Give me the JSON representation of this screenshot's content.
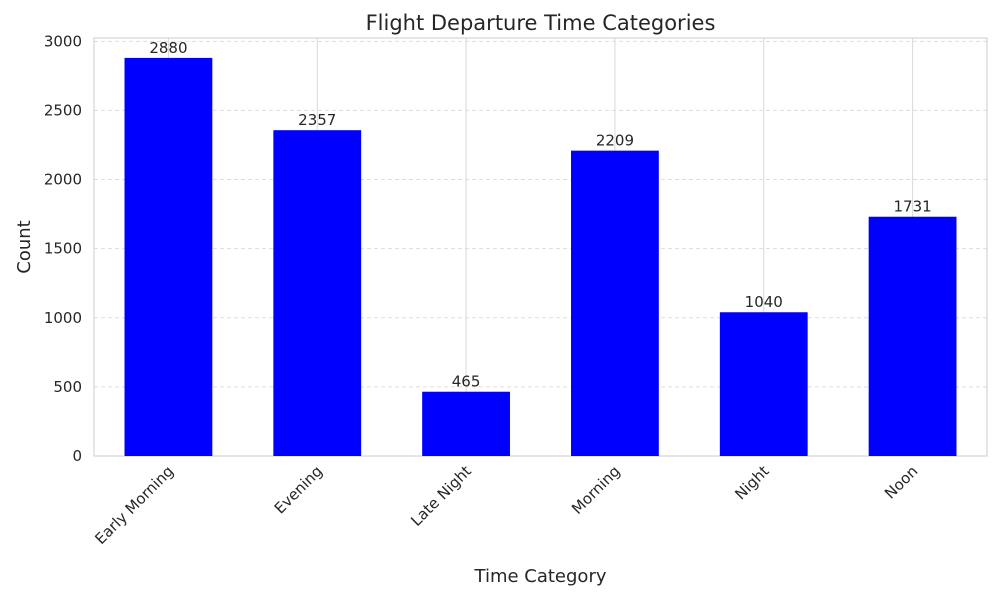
{
  "chart_data": {
    "type": "bar",
    "title": "Flight Departure Time Categories",
    "xlabel": "Time Category",
    "ylabel": "Count",
    "categories": [
      "Early Morning",
      "Evening",
      "Late Night",
      "Morning",
      "Night",
      "Noon"
    ],
    "values": [
      2880,
      2357,
      465,
      2209,
      1040,
      1731
    ],
    "ylim": [
      0,
      3024
    ],
    "yticks": [
      0,
      500,
      1000,
      1500,
      2000,
      2500,
      3000
    ],
    "data_labels": true,
    "bar_color": "#0000ff",
    "grid": {
      "y": "dashed",
      "x": "solid"
    },
    "legend": "none"
  }
}
